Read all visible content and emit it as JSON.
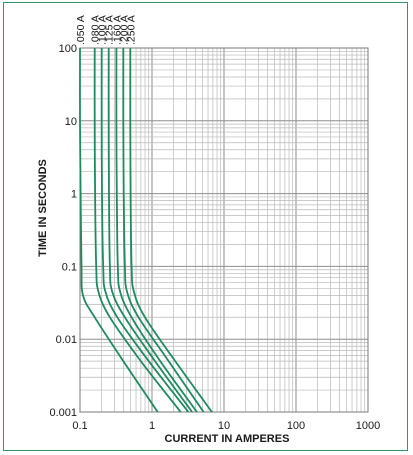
{
  "chart_data": {
    "type": "line",
    "title": "",
    "xlabel": "CURRENT IN AMPERES",
    "ylabel": "TIME IN SECONDS",
    "x_scale": "log",
    "y_scale": "log",
    "xlim": [
      0.1,
      1000
    ],
    "ylim": [
      0.001,
      100
    ],
    "grid": true,
    "x_ticks": [
      0.1,
      1,
      10,
      100,
      1000
    ],
    "x_tick_labels": [
      "0.1",
      "1",
      "10",
      "100",
      "1000"
    ],
    "y_ticks": [
      0.001,
      0.01,
      0.1,
      1,
      10,
      100
    ],
    "y_tick_labels": [
      "0.001",
      "0.01",
      "0.1",
      "1",
      "10",
      "100"
    ],
    "line_color": "#1e8a5e",
    "series": [
      {
        "name": ".050 A",
        "points": [
          [
            0.1,
            100
          ],
          [
            0.1,
            10
          ],
          [
            0.102,
            1
          ],
          [
            0.105,
            0.1
          ],
          [
            0.11,
            0.04
          ],
          [
            0.16,
            0.02
          ],
          [
            0.4,
            0.005
          ],
          [
            1.2,
            0.001
          ]
        ]
      },
      {
        "name": ".080 A",
        "points": [
          [
            0.16,
            100
          ],
          [
            0.16,
            10
          ],
          [
            0.162,
            1
          ],
          [
            0.168,
            0.1
          ],
          [
            0.18,
            0.045
          ],
          [
            0.26,
            0.02
          ],
          [
            0.7,
            0.005
          ],
          [
            2.5,
            0.001
          ]
        ]
      },
      {
        "name": ".100 A",
        "points": [
          [
            0.2,
            100
          ],
          [
            0.2,
            10
          ],
          [
            0.202,
            1
          ],
          [
            0.21,
            0.1
          ],
          [
            0.225,
            0.045
          ],
          [
            0.33,
            0.02
          ],
          [
            0.9,
            0.005
          ],
          [
            3.2,
            0.001
          ]
        ]
      },
      {
        "name": ".125 A",
        "points": [
          [
            0.25,
            100
          ],
          [
            0.25,
            10
          ],
          [
            0.253,
            1
          ],
          [
            0.26,
            0.1
          ],
          [
            0.28,
            0.045
          ],
          [
            0.42,
            0.02
          ],
          [
            1.1,
            0.005
          ],
          [
            3.6,
            0.001
          ]
        ]
      },
      {
        "name": ".160 A",
        "points": [
          [
            0.32,
            100
          ],
          [
            0.32,
            10
          ],
          [
            0.324,
            1
          ],
          [
            0.335,
            0.1
          ],
          [
            0.36,
            0.045
          ],
          [
            0.52,
            0.02
          ],
          [
            1.3,
            0.005
          ],
          [
            4.2,
            0.001
          ]
        ]
      },
      {
        "name": ".200 A",
        "points": [
          [
            0.4,
            100
          ],
          [
            0.4,
            10
          ],
          [
            0.405,
            1
          ],
          [
            0.42,
            0.1
          ],
          [
            0.45,
            0.045
          ],
          [
            0.65,
            0.02
          ],
          [
            1.7,
            0.005
          ],
          [
            5.2,
            0.001
          ]
        ]
      },
      {
        "name": ".250 A",
        "points": [
          [
            0.5,
            100
          ],
          [
            0.5,
            10
          ],
          [
            0.505,
            1
          ],
          [
            0.52,
            0.1
          ],
          [
            0.56,
            0.045
          ],
          [
            0.8,
            0.02
          ],
          [
            2.1,
            0.005
          ],
          [
            6.8,
            0.001
          ]
        ]
      }
    ]
  }
}
